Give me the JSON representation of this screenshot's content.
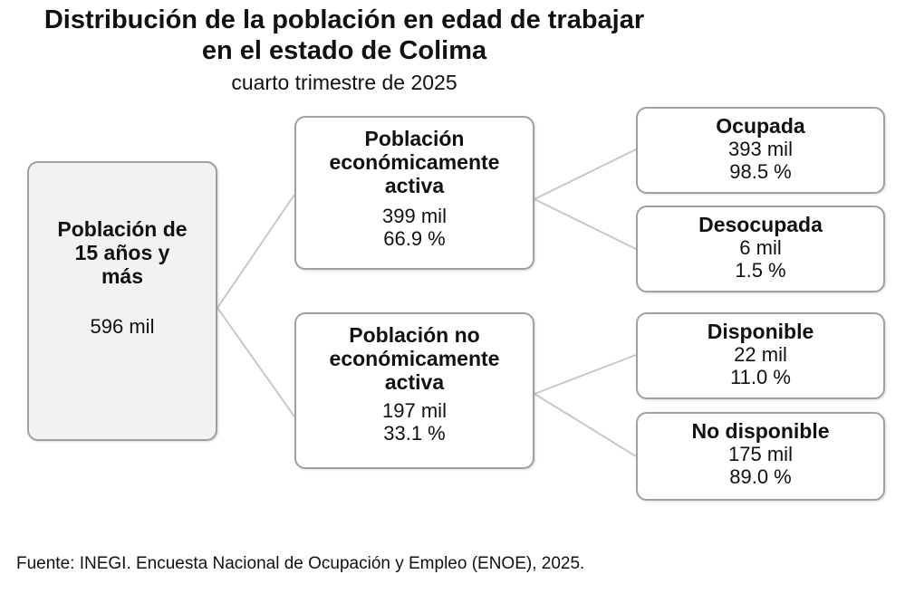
{
  "title": {
    "line1": "Distribución de la población en edad de trabajar",
    "line2": "en el estado de Colima",
    "subtitle": "cuarto trimestre de 2025"
  },
  "root": {
    "label_l1": "Población de",
    "label_l2": "15 años y",
    "label_l3": "más",
    "value": "596 mil"
  },
  "pea": {
    "label_l1": "Población",
    "label_l2": "económicamente",
    "label_l3": "activa",
    "value": "399 mil",
    "percent": "66.9 %"
  },
  "pnea": {
    "label_l1": "Población no",
    "label_l2": "económicamente",
    "label_l3": "activa",
    "value": "197 mil",
    "percent": "33.1 %"
  },
  "ocupada": {
    "label": "Ocupada",
    "value": "393 mil",
    "percent": "98.5 %"
  },
  "desocupada": {
    "label": "Desocupada",
    "value": "6 mil",
    "percent": "1.5 %"
  },
  "disponible": {
    "label": "Disponible",
    "value": "22 mil",
    "percent": "11.0 %"
  },
  "no_disponible": {
    "label": "No disponible",
    "value": "175 mil",
    "percent": "89.0 %"
  },
  "source": "Fuente: INEGI. Encuesta Nacional de Ocupación y Empleo (ENOE), 2025.",
  "colors": {
    "root_fill": "#f2f2f2",
    "border": "#a0a0a0",
    "connector": "#c8c8c8"
  }
}
